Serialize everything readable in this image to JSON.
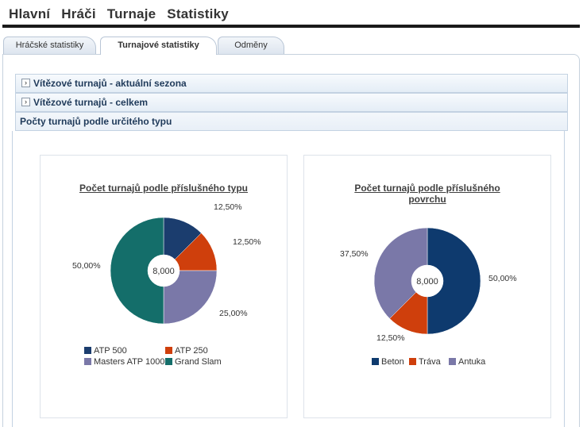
{
  "nav": {
    "items": [
      "Hlavní",
      "Hráči",
      "Turnaje",
      "Statistiky"
    ]
  },
  "tabs": [
    {
      "label": "Hráčské statistiky",
      "active": false
    },
    {
      "label": "Turnajové statistiky",
      "active": true
    },
    {
      "label": "Odměny",
      "active": false
    }
  ],
  "accordion": [
    {
      "label": "Vítězové turnajů - aktuální sezona",
      "expanded": false
    },
    {
      "label": "Vítězové turnajů - celkem",
      "expanded": false
    },
    {
      "label": "Počty turnajů podle určitého typu",
      "expanded": true
    }
  ],
  "chart_data": [
    {
      "type": "pie",
      "variant": "donut",
      "title": "Počet turnajů podle příslušného typu",
      "center_label": "8,000",
      "categories": [
        "ATP 500",
        "ATP 250",
        "Masters ATP 1000",
        "Grand Slam"
      ],
      "values": [
        1,
        1,
        2,
        4
      ],
      "data_labels": [
        "12,50%",
        "12,50%",
        "25,00%",
        "50,00%"
      ],
      "colors": [
        "#1b3d6e",
        "#cf3f0c",
        "#7a78a8",
        "#146e6a"
      ],
      "legend": "bottom"
    },
    {
      "type": "pie",
      "variant": "donut",
      "title": "Počet turnajů podle příslušného povrchu",
      "center_label": "8,000",
      "categories": [
        "Beton",
        "Tráva",
        "Antuka"
      ],
      "values": [
        4,
        1,
        3
      ],
      "data_labels": [
        "50,00%",
        "12,50%",
        "37,50%"
      ],
      "colors": [
        "#0e3a6e",
        "#cf3f0c",
        "#7a78a8"
      ],
      "legend": "bottom"
    }
  ]
}
